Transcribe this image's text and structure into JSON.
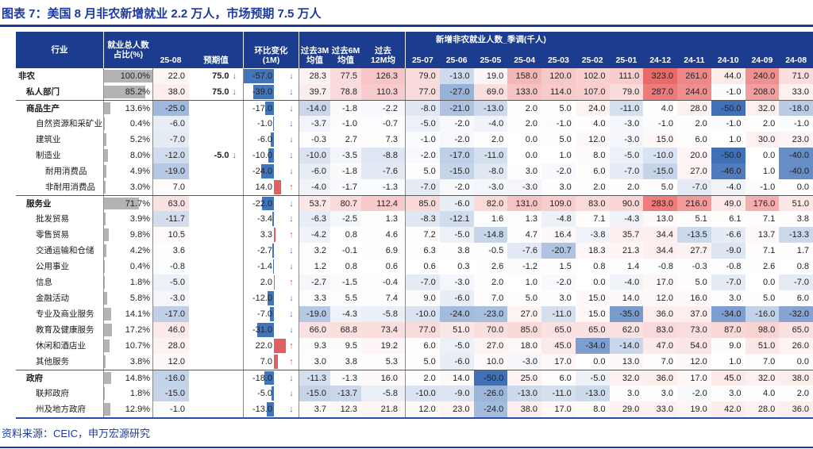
{
  "title": "图表 7：美国 8 月非农新增就业 2.2 万人，市场预期 7.5 万人",
  "source": "资料来源：CEIC，申万宏源研究",
  "colors": {
    "header_bg": "#1c3d8f",
    "title_blue": "#1c3aa0",
    "accent_line": "#1c3894",
    "pct_bar_gray": "#b3b3b3",
    "heat_red": "#ea6a6a",
    "heat_blue": "#4071b7",
    "mom_bar_neg": "#4274b9",
    "mom_bar_pos": "#e06060",
    "arrow_down": "#4472c4",
    "arrow_up": "#e05555"
  },
  "chart_data": {
    "type": "table",
    "title": "美国 8 月非农新增就业 2.2 万人，市场预期 7.5 万人",
    "group_header": "新增非农就业人数_季调(千人)",
    "columns": {
      "industry": "行业",
      "pct": "就业总人数\n占比(%)",
      "current": "25-08",
      "expected": "预期值",
      "mom": "环比变化\n(1M)",
      "avg3m": "过去3M\n均值",
      "avg6m": "过去6M\n均值",
      "avg12m": "过去\n12M均",
      "months": [
        "25-07",
        "25-06",
        "25-05",
        "25-04",
        "25-03",
        "25-02",
        "25-01",
        "24-12",
        "24-11",
        "24-10",
        "24-09",
        "24-08"
      ]
    },
    "heatmap": {
      "positive_max": 323,
      "negative_min": -50
    },
    "mom_bar_scale_max": 57,
    "rows": [
      {
        "label": "非农",
        "indent": 0,
        "bold": true,
        "section": false,
        "pct": 100.0,
        "cur": 22.0,
        "exp": 75.0,
        "exp_dir": "down",
        "mom": -57.0,
        "mom_dir": "down",
        "a3": 28.3,
        "a6": 77.5,
        "a12": 126.3,
        "months": [
          79.0,
          -13.0,
          19.0,
          158.0,
          120.0,
          102.0,
          111.0,
          323.0,
          261.0,
          44.0,
          240.0,
          71.0
        ]
      },
      {
        "label": "私人部门",
        "indent": 1,
        "bold": true,
        "section": false,
        "pct": 85.2,
        "cur": 38.0,
        "exp": 75.0,
        "exp_dir": "down",
        "mom": -39.0,
        "mom_dir": "down",
        "a3": 39.7,
        "a6": 78.8,
        "a12": 110.3,
        "months": [
          77.0,
          -27.0,
          69.0,
          133.0,
          114.0,
          107.0,
          79.0,
          287.0,
          244.0,
          -1.0,
          208.0,
          33.0
        ]
      },
      {
        "label": "商品生产",
        "indent": 1,
        "bold": true,
        "section": true,
        "pct": 13.6,
        "cur": -25.0,
        "exp": null,
        "exp_dir": null,
        "mom": -17.0,
        "mom_dir": "down",
        "a3": -14.0,
        "a6": -1.8,
        "a12": -2.2,
        "months": [
          -8.0,
          -21.0,
          -13.0,
          2.0,
          5.0,
          24.0,
          -11.0,
          4.0,
          28.0,
          -50.0,
          32.0,
          -18.0
        ]
      },
      {
        "label": "自然资源和采矿业",
        "indent": 2,
        "bold": false,
        "section": false,
        "pct": 0.4,
        "cur": -6.0,
        "exp": null,
        "exp_dir": null,
        "mom": -1.0,
        "mom_dir": "down",
        "a3": -3.7,
        "a6": -1.0,
        "a12": -0.7,
        "months": [
          -5.0,
          -2.0,
          -4.0,
          2.0,
          -1.0,
          4.0,
          -3.0,
          -1.0,
          2.0,
          -1.0,
          2.0,
          -1.0
        ]
      },
      {
        "label": "建筑业",
        "indent": 2,
        "bold": false,
        "section": false,
        "pct": 5.2,
        "cur": -7.0,
        "exp": null,
        "exp_dir": null,
        "mom": -6.0,
        "mom_dir": "down",
        "a3": -0.3,
        "a6": 2.7,
        "a12": 7.3,
        "months": [
          -1.0,
          -2.0,
          2.0,
          0.0,
          5.0,
          12.0,
          -3.0,
          15.0,
          6.0,
          1.0,
          30.0,
          23.0
        ]
      },
      {
        "label": "制造业",
        "indent": 2,
        "bold": false,
        "section": false,
        "pct": 8.0,
        "cur": -12.0,
        "exp": -5.0,
        "exp_dir": "down",
        "mom": -10.0,
        "mom_dir": "down",
        "a3": -10.0,
        "a6": -3.5,
        "a12": -8.8,
        "months": [
          -2.0,
          -17.0,
          -11.0,
          0.0,
          1.0,
          8.0,
          -5.0,
          -10.0,
          20.0,
          -50.0,
          0.0,
          -40.0
        ]
      },
      {
        "label": "耐用消费品",
        "indent": 3,
        "bold": false,
        "section": false,
        "pct": 4.9,
        "cur": -19.0,
        "exp": null,
        "exp_dir": null,
        "mom": -24.0,
        "mom_dir": "down",
        "a3": -6.0,
        "a6": -1.8,
        "a12": -7.6,
        "months": [
          5.0,
          -15.0,
          -8.0,
          3.0,
          -2.0,
          6.0,
          -7.0,
          -15.0,
          27.0,
          -46.0,
          1.0,
          -40.0
        ]
      },
      {
        "label": "非耐用消费品",
        "indent": 3,
        "bold": false,
        "section": false,
        "pct": 3.0,
        "cur": 7.0,
        "exp": null,
        "exp_dir": null,
        "mom": 14.0,
        "mom_dir": "up",
        "a3": -4.0,
        "a6": -1.7,
        "a12": -1.3,
        "months": [
          -7.0,
          -2.0,
          -3.0,
          -3.0,
          3.0,
          2.0,
          2.0,
          5.0,
          -7.0,
          -4.0,
          -1.0,
          0.0
        ]
      },
      {
        "label": "服务业",
        "indent": 1,
        "bold": true,
        "section": true,
        "pct": 71.7,
        "cur": 63.0,
        "exp": null,
        "exp_dir": null,
        "mom": -22.0,
        "mom_dir": "down",
        "a3": 53.7,
        "a6": 80.7,
        "a12": 112.4,
        "months": [
          85.0,
          -6.0,
          82.0,
          131.0,
          109.0,
          83.0,
          90.0,
          283.0,
          216.0,
          49.0,
          176.0,
          51.0
        ]
      },
      {
        "label": "批发贸易",
        "indent": 2,
        "bold": false,
        "section": false,
        "pct": 3.9,
        "cur": -11.7,
        "exp": null,
        "exp_dir": null,
        "mom": -3.4,
        "mom_dir": "down",
        "a3": -6.3,
        "a6": -2.5,
        "a12": 1.3,
        "months": [
          -8.3,
          -12.1,
          1.6,
          1.3,
          -4.8,
          7.1,
          -4.3,
          13.0,
          5.1,
          6.1,
          7.1,
          3.8
        ]
      },
      {
        "label": "零售贸易",
        "indent": 2,
        "bold": false,
        "section": false,
        "pct": 9.8,
        "cur": 10.5,
        "exp": null,
        "exp_dir": null,
        "mom": 3.3,
        "mom_dir": "up",
        "a3": -4.2,
        "a6": 0.8,
        "a12": 4.6,
        "months": [
          7.2,
          -5.0,
          -14.8,
          4.7,
          16.4,
          -3.8,
          35.7,
          34.4,
          -13.5,
          -6.6,
          13.7,
          -13.3
        ]
      },
      {
        "label": "交通运输和仓储",
        "indent": 2,
        "bold": false,
        "section": false,
        "pct": 4.2,
        "cur": 3.6,
        "exp": null,
        "exp_dir": null,
        "mom": -2.7,
        "mom_dir": "down",
        "a3": 3.2,
        "a6": -0.1,
        "a12": 6.9,
        "months": [
          6.3,
          3.8,
          -0.5,
          -7.6,
          -20.7,
          18.3,
          21.3,
          34.4,
          27.7,
          -9.0,
          7.1,
          1.7
        ]
      },
      {
        "label": "公用事业",
        "indent": 2,
        "bold": false,
        "section": false,
        "pct": 0.4,
        "cur": -0.8,
        "exp": null,
        "exp_dir": null,
        "mom": -1.4,
        "mom_dir": "down",
        "a3": 1.2,
        "a6": 0.8,
        "a12": 0.6,
        "months": [
          0.6,
          0.3,
          2.6,
          -1.2,
          1.5,
          0.8,
          1.4,
          -0.8,
          -0.3,
          -0.8,
          2.6,
          0.8
        ]
      },
      {
        "label": "信息",
        "indent": 2,
        "bold": false,
        "section": false,
        "pct": 1.8,
        "cur": -5.0,
        "exp": null,
        "exp_dir": null,
        "mom": 2.0,
        "mom_dir": "up",
        "a3": -2.7,
        "a6": -1.5,
        "a12": -0.4,
        "months": [
          -7.0,
          -3.0,
          2.0,
          1.0,
          -2.0,
          0.0,
          -4.0,
          17.0,
          5.0,
          -7.0,
          0.0,
          -7.0
        ]
      },
      {
        "label": "金融活动",
        "indent": 2,
        "bold": false,
        "section": false,
        "pct": 5.8,
        "cur": -3.0,
        "exp": null,
        "exp_dir": null,
        "mom": -12.0,
        "mom_dir": "down",
        "a3": 3.3,
        "a6": 5.5,
        "a12": 7.4,
        "months": [
          9.0,
          -6.0,
          7.0,
          5.0,
          3.0,
          15.0,
          14.0,
          12.0,
          16.0,
          3.0,
          5.0,
          6.0
        ]
      },
      {
        "label": "专业及商业服务",
        "indent": 2,
        "bold": false,
        "section": false,
        "pct": 14.1,
        "cur": -17.0,
        "exp": null,
        "exp_dir": null,
        "mom": -7.0,
        "mom_dir": "down",
        "a3": -19.0,
        "a6": -4.3,
        "a12": -5.8,
        "months": [
          -10.0,
          -24.0,
          -23.0,
          27.0,
          -11.0,
          15.0,
          -35.0,
          36.0,
          37.0,
          -34.0,
          -16.0,
          -32.0
        ]
      },
      {
        "label": "教育及健康服务",
        "indent": 2,
        "bold": false,
        "section": false,
        "pct": 17.2,
        "cur": 46.0,
        "exp": null,
        "exp_dir": null,
        "mom": -31.0,
        "mom_dir": "down",
        "a3": 66.0,
        "a6": 68.8,
        "a12": 73.4,
        "months": [
          77.0,
          51.0,
          70.0,
          85.0,
          65.0,
          65.0,
          62.0,
          83.0,
          73.0,
          87.0,
          98.0,
          65.0
        ]
      },
      {
        "label": "休闲和酒店业",
        "indent": 2,
        "bold": false,
        "section": false,
        "pct": 10.7,
        "cur": 28.0,
        "exp": null,
        "exp_dir": null,
        "mom": 22.0,
        "mom_dir": "up",
        "a3": 9.3,
        "a6": 9.5,
        "a12": 19.2,
        "months": [
          6.0,
          -5.0,
          27.0,
          18.0,
          45.0,
          -34.0,
          -14.0,
          47.0,
          54.0,
          9.0,
          51.0,
          26.0
        ]
      },
      {
        "label": "其他服务",
        "indent": 2,
        "bold": false,
        "section": false,
        "pct": 3.8,
        "cur": 12.0,
        "exp": null,
        "exp_dir": null,
        "mom": 7.0,
        "mom_dir": "up",
        "a3": 3.0,
        "a6": 3.8,
        "a12": 5.3,
        "months": [
          5.0,
          -6.0,
          10.0,
          -3.0,
          17.0,
          0.0,
          13.0,
          7.0,
          12.0,
          1.0,
          7.0,
          0.0
        ]
      },
      {
        "label": "政府",
        "indent": 1,
        "bold": true,
        "section": true,
        "pct": 14.8,
        "cur": -16.0,
        "exp": null,
        "exp_dir": null,
        "mom": -18.0,
        "mom_dir": "down",
        "a3": -11.3,
        "a6": -1.3,
        "a12": 16.0,
        "months": [
          2.0,
          14.0,
          -50.0,
          25.0,
          6.0,
          -5.0,
          32.0,
          36.0,
          17.0,
          45.0,
          32.0,
          38.0
        ]
      },
      {
        "label": "联邦政府",
        "indent": 2,
        "bold": false,
        "section": false,
        "pct": 1.8,
        "cur": -15.0,
        "exp": null,
        "exp_dir": null,
        "mom": -5.0,
        "mom_dir": "down",
        "a3": -15.0,
        "a6": -13.7,
        "a12": -5.8,
        "months": [
          -10.0,
          -9.0,
          -26.0,
          -13.0,
          -11.0,
          -13.0,
          3.0,
          3.0,
          -2.0,
          3.0,
          4.0,
          2.0
        ]
      },
      {
        "label": "州及地方政府",
        "indent": 2,
        "bold": false,
        "section": false,
        "pct": 12.9,
        "cur": -1.0,
        "exp": null,
        "exp_dir": null,
        "mom": -13.0,
        "mom_dir": "down",
        "a3": 3.7,
        "a6": 12.3,
        "a12": 21.8,
        "months": [
          12.0,
          23.0,
          -24.0,
          38.0,
          17.0,
          8.0,
          29.0,
          33.0,
          19.0,
          42.0,
          28.0,
          36.0
        ]
      }
    ]
  }
}
